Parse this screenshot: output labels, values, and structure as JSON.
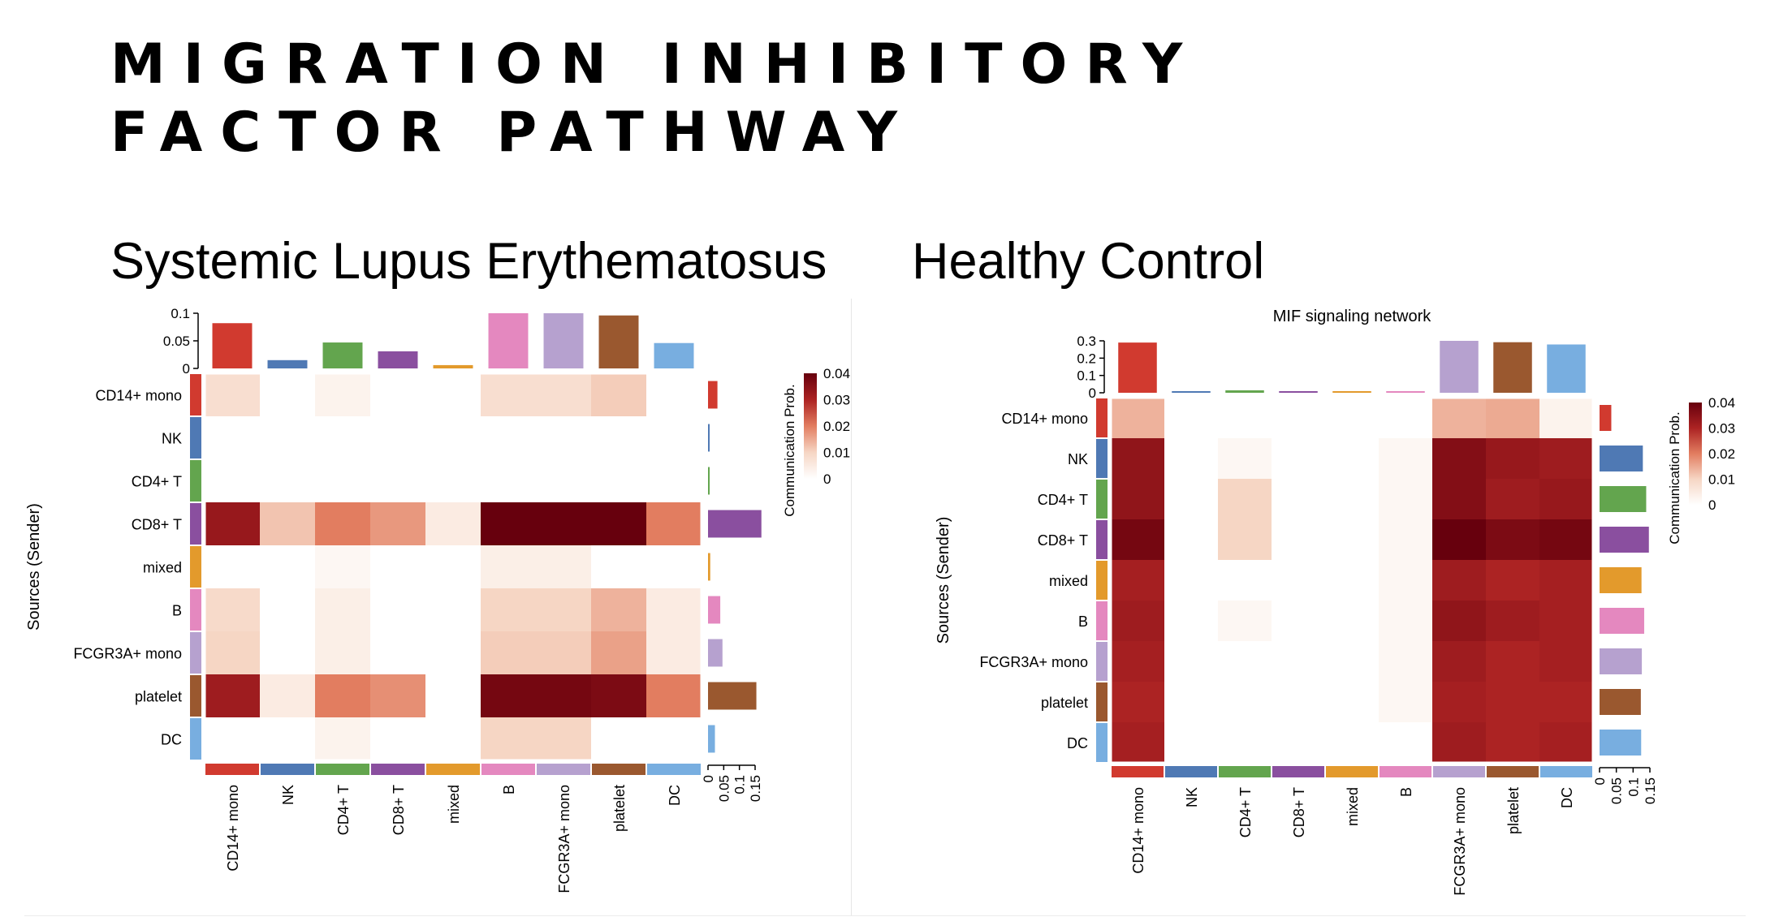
{
  "slide": {
    "title_line1": "MIGRATION INHIBITORY",
    "title_line2": "FACTOR PATHWAY",
    "left_subtitle": "Systemic Lupus Erythematosus",
    "right_subtitle": "Healthy Control"
  },
  "colors": {
    "cells": [
      "#d13a2f",
      "#4f79b4",
      "#63a54e",
      "#8a4f9f",
      "#e39a2c",
      "#e488bf",
      "#b6a1cf",
      "#9a582f",
      "#78aee0"
    ],
    "scale_low": "#ffffff",
    "scale_high": "#67000d"
  },
  "chart_data": [
    {
      "type": "heatmap",
      "title": "",
      "ylabel": "Sources (Sender)",
      "legend_label": "Communication Prob.",
      "legend_ticks": [
        "0.04",
        "0.03",
        "0.02",
        "0.01",
        "0"
      ],
      "legend_range": [
        0,
        0.04
      ],
      "rows": [
        "CD14+ mono",
        "NK",
        "CD4+ T",
        "CD8+ T",
        "mixed",
        "B",
        "FCGR3A+ mono",
        "platelet",
        "DC"
      ],
      "cols": [
        "CD14+ mono",
        "NK",
        "CD4+ T",
        "CD8+ T",
        "mixed",
        "B",
        "FCGR3A+ mono",
        "platelet",
        "DC"
      ],
      "values": [
        [
          0.008,
          0,
          0.003,
          0,
          0,
          0.008,
          0.008,
          0.011,
          0
        ],
        [
          0,
          0,
          0,
          0,
          0,
          0,
          0,
          0,
          0
        ],
        [
          0,
          0,
          0,
          0,
          0,
          0,
          0,
          0,
          0
        ],
        [
          0.033,
          0.012,
          0.02,
          0.017,
          0.005,
          0.04,
          0.041,
          0.04,
          0.02
        ],
        [
          0,
          0,
          0.002,
          0,
          0,
          0.004,
          0.004,
          0,
          0
        ],
        [
          0.009,
          0,
          0.004,
          0,
          0,
          0.01,
          0.01,
          0.014,
          0.005
        ],
        [
          0.01,
          0,
          0.004,
          0,
          0,
          0.011,
          0.011,
          0.016,
          0.005
        ],
        [
          0.032,
          0.005,
          0.02,
          0.018,
          0,
          0.038,
          0.038,
          0.037,
          0.02
        ],
        [
          0,
          0,
          0.003,
          0,
          0,
          0.01,
          0.01,
          0,
          0
        ]
      ],
      "top_bars": {
        "ticks": [
          "0.1",
          "0.05",
          "0"
        ],
        "range": [
          0,
          0.1
        ],
        "values": [
          0.082,
          0.015,
          0.047,
          0.031,
          0.006,
          0.1,
          0.1,
          0.096,
          0.046
        ]
      },
      "right_bars": {
        "ticks": [
          "0",
          "0.05",
          "0.1",
          "0.15"
        ],
        "range": [
          0,
          0.15
        ],
        "values": [
          0.03,
          0.002,
          0.002,
          0.17,
          0.007,
          0.039,
          0.046,
          0.154,
          0.022
        ]
      }
    },
    {
      "type": "heatmap",
      "title": "MIF signaling network",
      "ylabel": "Sources (Sender)",
      "legend_label": "Communication Prob.",
      "legend_ticks": [
        "0.04",
        "0.03",
        "0.02",
        "0.01",
        "0"
      ],
      "legend_range": [
        0,
        0.04
      ],
      "rows": [
        "CD14+ mono",
        "NK",
        "CD4+ T",
        "CD8+ T",
        "mixed",
        "B",
        "FCGR3A+ mono",
        "platelet",
        "DC"
      ],
      "cols": [
        "CD14+ mono",
        "NK",
        "CD4+ T",
        "CD8+ T",
        "mixed",
        "B",
        "FCGR3A+ mono",
        "platelet",
        "DC"
      ],
      "values": [
        [
          0.014,
          0,
          0,
          0,
          0,
          0,
          0.014,
          0.015,
          0.003
        ],
        [
          0.034,
          0,
          0.002,
          0,
          0,
          0.002,
          0.036,
          0.033,
          0.032
        ],
        [
          0.034,
          0,
          0.01,
          0,
          0,
          0.002,
          0.036,
          0.032,
          0.033
        ],
        [
          0.038,
          0,
          0.01,
          0,
          0,
          0.002,
          0.041,
          0.037,
          0.038
        ],
        [
          0.031,
          0,
          0,
          0,
          0,
          0.002,
          0.032,
          0.03,
          0.031
        ],
        [
          0.032,
          0,
          0.002,
          0,
          0,
          0.002,
          0.034,
          0.032,
          0.031
        ],
        [
          0.031,
          0,
          0,
          0,
          0,
          0.002,
          0.032,
          0.03,
          0.031
        ],
        [
          0.03,
          0,
          0,
          0,
          0,
          0.002,
          0.031,
          0.03,
          0.03
        ],
        [
          0.031,
          0,
          0,
          0,
          0,
          0,
          0.032,
          0.03,
          0.031
        ]
      ],
      "top_bars": {
        "ticks": [
          "0.3",
          "0.2",
          "0.1",
          "0"
        ],
        "range": [
          0,
          0.3
        ],
        "values": [
          0.29,
          0.004,
          0.014,
          0.003,
          0.003,
          0.005,
          0.3,
          0.292,
          0.279
        ]
      },
      "right_bars": {
        "ticks": [
          "0",
          "0.05",
          "0.1",
          "0.15"
        ],
        "range": [
          0,
          0.15
        ],
        "values": [
          0.035,
          0.129,
          0.139,
          0.147,
          0.125,
          0.133,
          0.126,
          0.123,
          0.124
        ]
      }
    }
  ]
}
